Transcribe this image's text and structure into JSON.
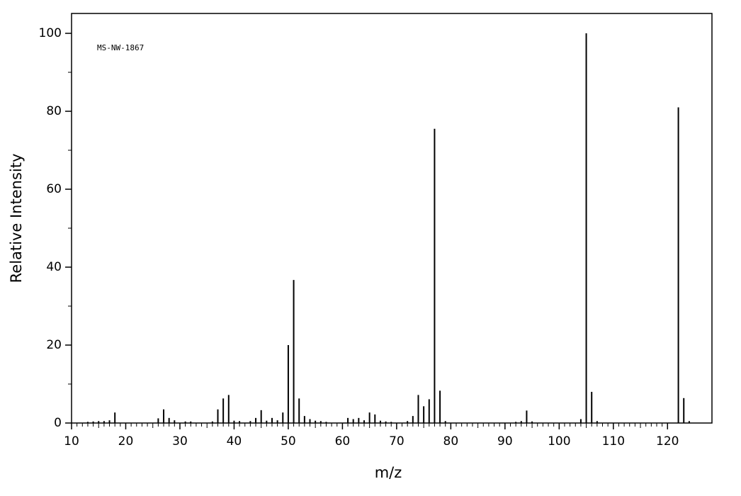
{
  "chart_data": {
    "type": "stem",
    "annotation": "MS-NW-1867",
    "xlabel": "m/z",
    "ylabel": "Relative Intensity",
    "x": [
      13,
      14,
      15,
      16,
      17,
      18,
      26,
      27,
      28,
      29,
      31,
      32,
      36,
      37,
      38,
      39,
      40,
      41,
      43,
      44,
      45,
      46,
      47,
      48,
      49,
      50,
      51,
      52,
      53,
      54,
      55,
      56,
      57,
      61,
      62,
      63,
      64,
      65,
      66,
      67,
      68,
      69,
      72,
      73,
      74,
      75,
      76,
      77,
      78,
      79,
      92,
      93,
      94,
      95,
      104,
      105,
      106,
      107,
      122,
      123,
      124
    ],
    "values": [
      0.3,
      0.4,
      0.5,
      0.5,
      0.7,
      2.7,
      1.2,
      3.5,
      1.3,
      0.7,
      0.4,
      0.4,
      0.4,
      3.5,
      6.3,
      7.2,
      0.6,
      0.5,
      0.5,
      1.3,
      3.3,
      0.6,
      1.3,
      0.7,
      2.7,
      20,
      36.7,
      6.3,
      1.8,
      1.0,
      0.6,
      0.5,
      0.3,
      1.3,
      1.0,
      1.3,
      0.7,
      2.7,
      2.2,
      0.6,
      0.4,
      0.3,
      0.5,
      1.8,
      7.2,
      4.3,
      6.1,
      75.5,
      8.3,
      0.5,
      0.3,
      0.5,
      3.2,
      0.4,
      1.0,
      100,
      8.0,
      0.5,
      81,
      6.4,
      0.5
    ],
    "color": "#000000",
    "xlim": [
      10,
      128.2
    ],
    "ylim": [
      0,
      105.1
    ],
    "xticks": [
      10,
      20,
      30,
      40,
      50,
      60,
      70,
      80,
      90,
      100,
      110,
      120
    ],
    "yticks": [
      0,
      20,
      40,
      60,
      80,
      100
    ]
  }
}
